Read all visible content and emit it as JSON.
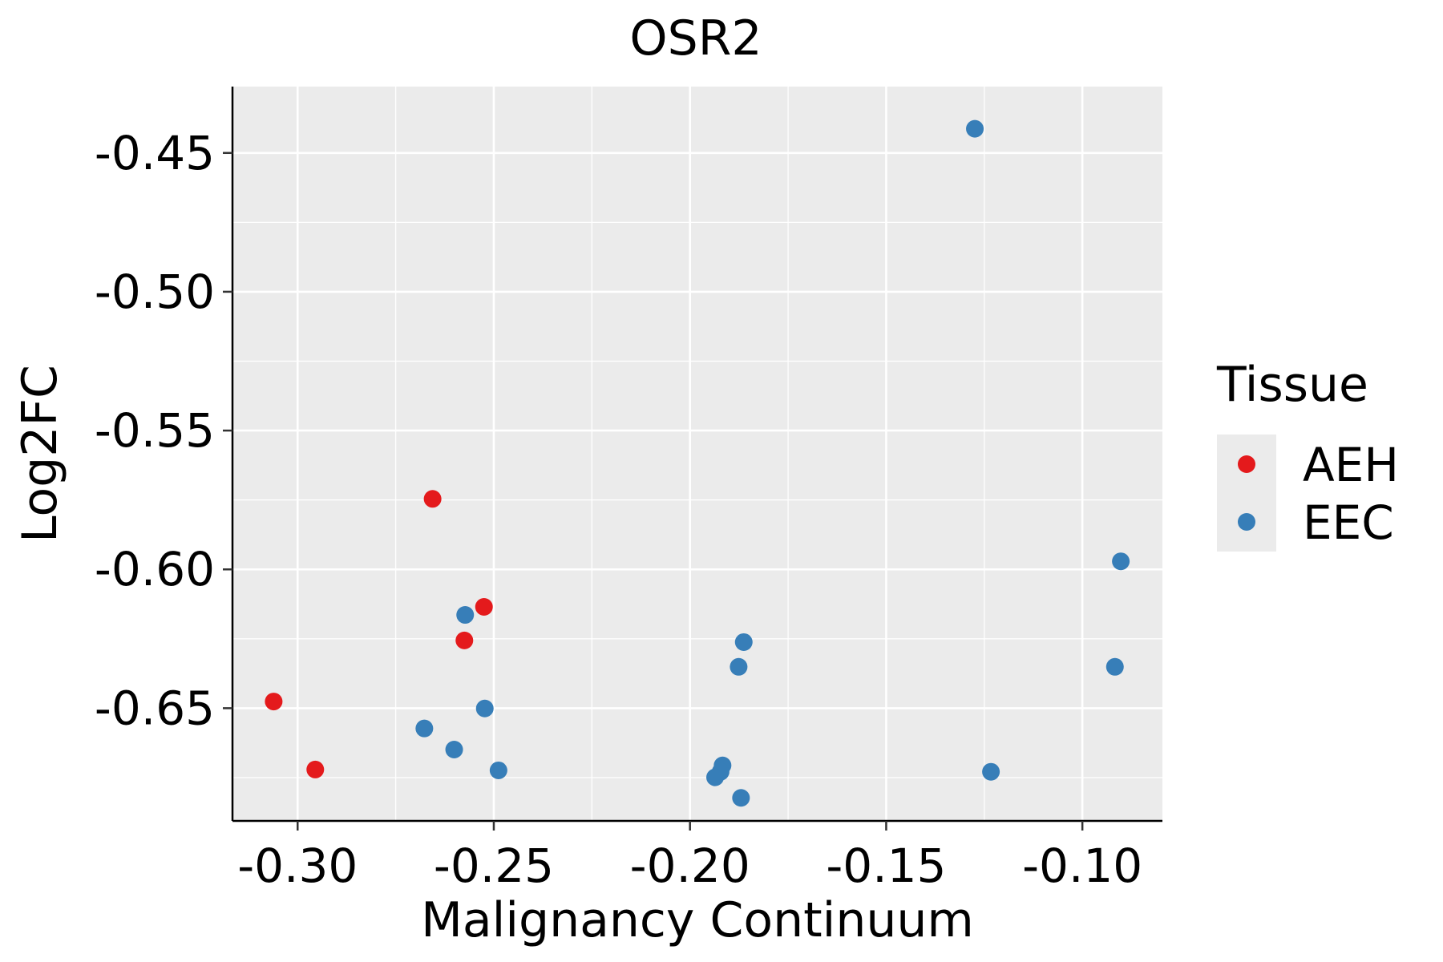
{
  "chart_data": {
    "type": "scatter",
    "title": "OSR2",
    "xlabel": "Malignancy Continuum",
    "ylabel": "Log2FC",
    "xlim": [
      -0.3166,
      -0.0796
    ],
    "ylim": [
      -0.6906,
      -0.4261
    ],
    "x_ticks": [
      -0.3,
      -0.25,
      -0.2,
      -0.15,
      -0.1
    ],
    "x_tick_labels": [
      "-0.30",
      "-0.25",
      "-0.20",
      "-0.15",
      "-0.10"
    ],
    "y_ticks": [
      -0.45,
      -0.5,
      -0.55,
      -0.6,
      -0.65
    ],
    "y_tick_labels": [
      "-0.45",
      "-0.50",
      "-0.55",
      "-0.60",
      "-0.65"
    ],
    "grid": true,
    "legend": {
      "title": "Tissue",
      "position": "right"
    },
    "series": [
      {
        "name": "AEH",
        "color": "#E41A1C",
        "points": [
          {
            "x": -0.2656,
            "y": -0.5746
          },
          {
            "x": -0.2525,
            "y": -0.6135
          },
          {
            "x": -0.2575,
            "y": -0.6256
          },
          {
            "x": -0.3061,
            "y": -0.6476
          },
          {
            "x": -0.2955,
            "y": -0.6721
          }
        ]
      },
      {
        "name": "EEC",
        "color": "#377EB8",
        "points": [
          {
            "x": -0.1274,
            "y": -0.4413
          },
          {
            "x": -0.0902,
            "y": -0.5971
          },
          {
            "x": -0.2573,
            "y": -0.6164
          },
          {
            "x": -0.1863,
            "y": -0.6262
          },
          {
            "x": -0.1876,
            "y": -0.6351
          },
          {
            "x": -0.0917,
            "y": -0.6351
          },
          {
            "x": -0.2523,
            "y": -0.6501
          },
          {
            "x": -0.2677,
            "y": -0.6573
          },
          {
            "x": -0.2601,
            "y": -0.6649
          },
          {
            "x": -0.2488,
            "y": -0.6724
          },
          {
            "x": -0.1917,
            "y": -0.6706
          },
          {
            "x": -0.1922,
            "y": -0.6729
          },
          {
            "x": -0.1936,
            "y": -0.6749
          },
          {
            "x": -0.1233,
            "y": -0.6729
          },
          {
            "x": -0.187,
            "y": -0.6823
          }
        ]
      }
    ]
  }
}
